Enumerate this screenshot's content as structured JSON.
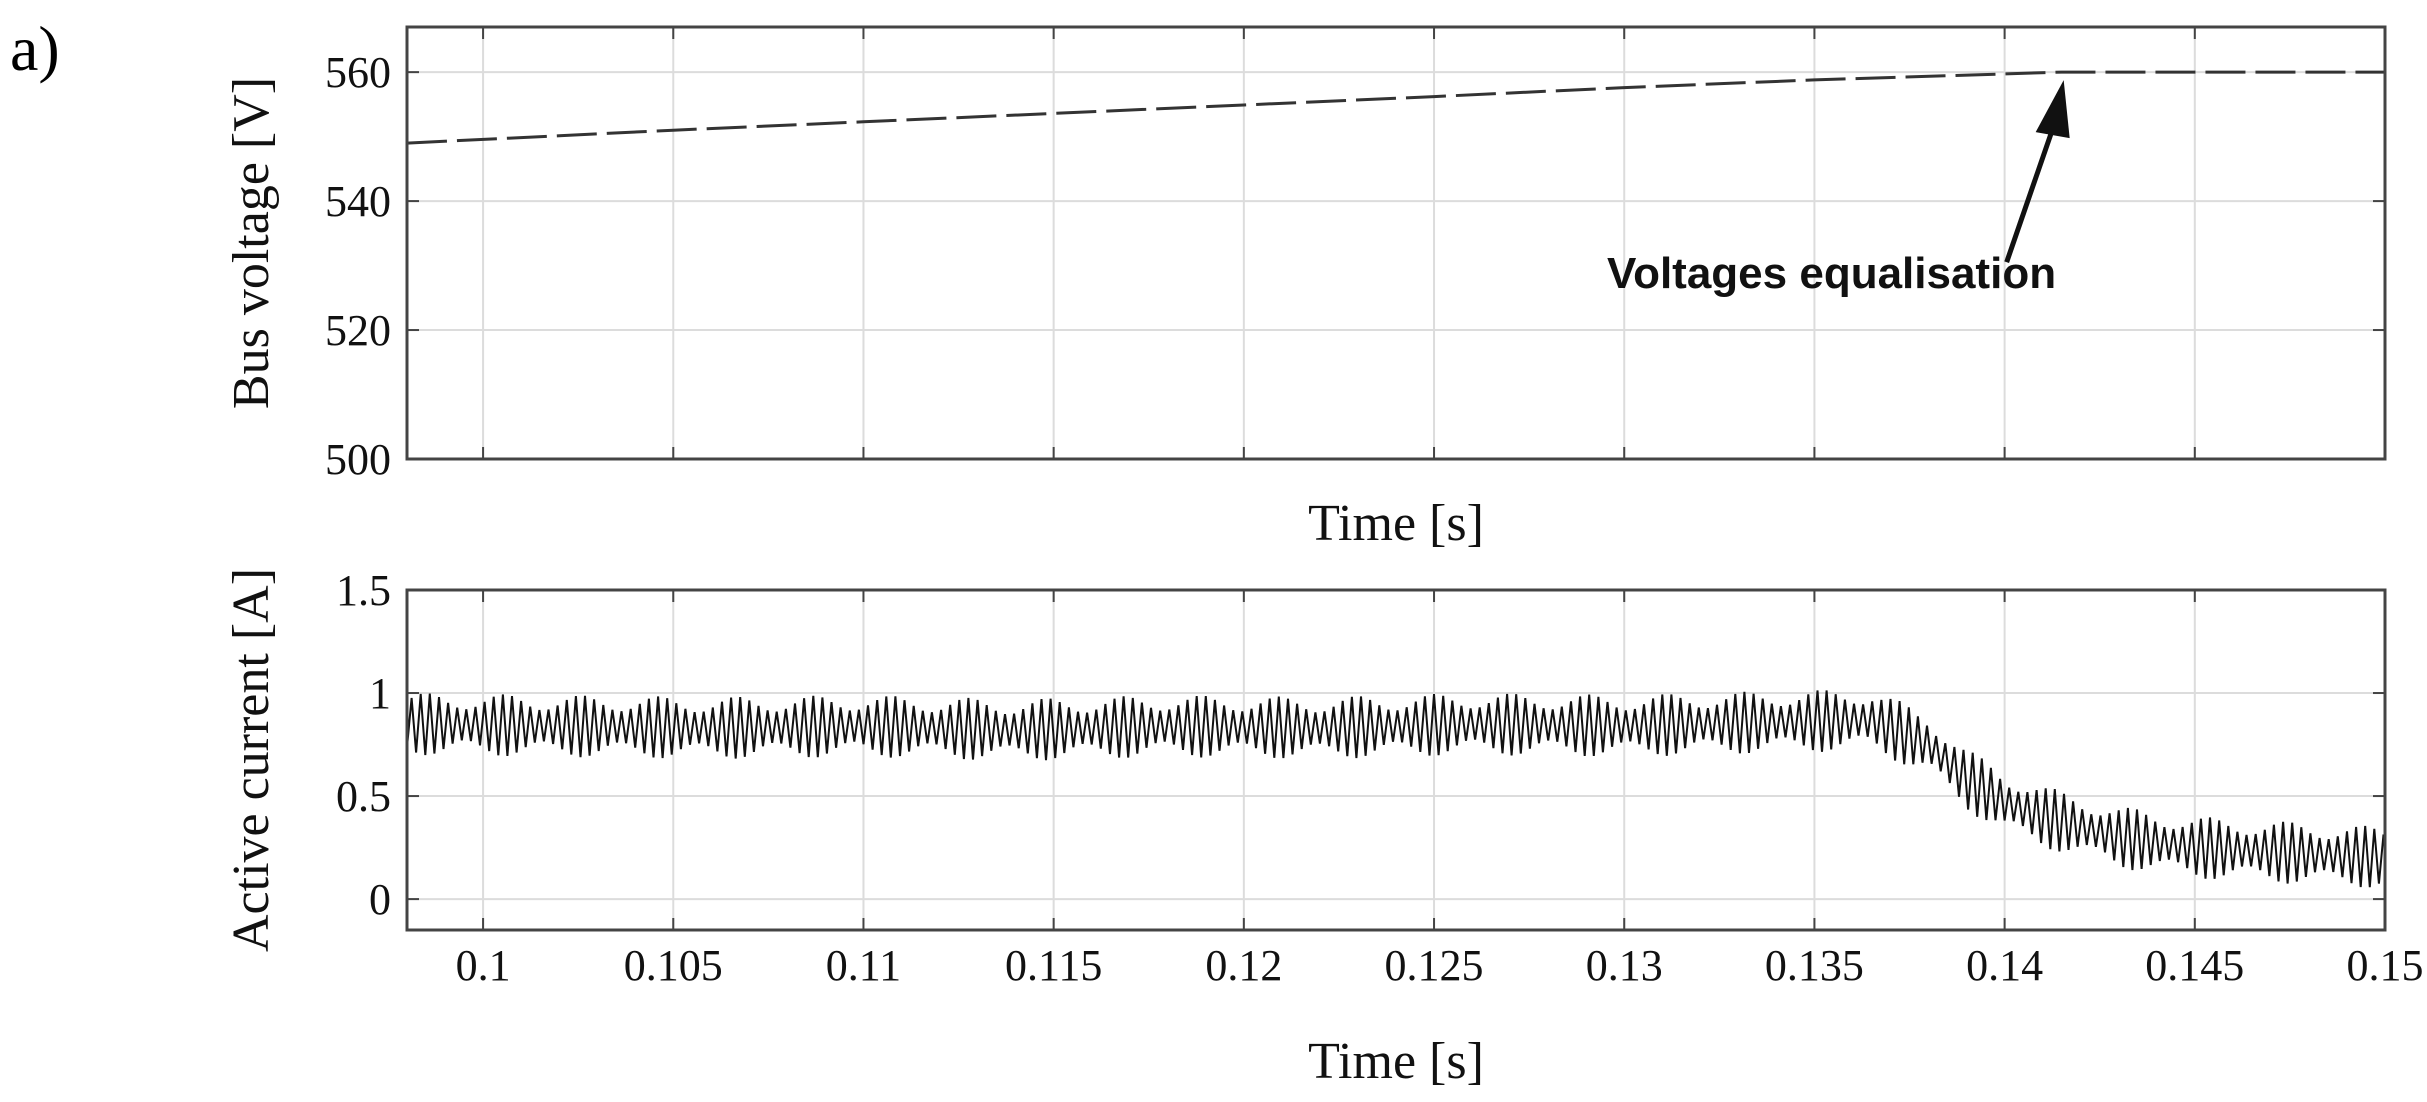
{
  "panel_label": "a)",
  "chart_data": [
    {
      "type": "line",
      "xlabel": "Time [s]",
      "ylabel": "Bus voltage [V]",
      "xlim": [
        0.098,
        0.15
      ],
      "ylim": [
        500,
        567
      ],
      "xticks": [
        0.1,
        0.105,
        0.11,
        0.115,
        0.12,
        0.125,
        0.13,
        0.135,
        0.14,
        0.145,
        0.15
      ],
      "xtick_labels": [],
      "yticks": [
        500,
        520,
        540,
        560
      ],
      "ytick_labels": [
        "500",
        "520",
        "540",
        "560"
      ],
      "grid": true,
      "line_style": "dashed",
      "series": [
        {
          "x": [
            0.098,
            0.105,
            0.11,
            0.115,
            0.12,
            0.125,
            0.13,
            0.135,
            0.1415,
            0.15
          ],
          "values": [
            549,
            551,
            552.3,
            553.6,
            554.9,
            556.2,
            557.6,
            558.8,
            560,
            560
          ]
        }
      ],
      "annotations": [
        {
          "text": "Voltages equalisation",
          "x": 0.1415,
          "y": 560
        }
      ]
    },
    {
      "type": "line",
      "xlabel": "Time [s]",
      "ylabel": "Active current [A]",
      "xlim": [
        0.098,
        0.15
      ],
      "ylim": [
        -0.15,
        1.5
      ],
      "xticks": [
        0.1,
        0.105,
        0.11,
        0.115,
        0.12,
        0.125,
        0.13,
        0.135,
        0.14,
        0.145,
        0.15
      ],
      "xtick_labels": [
        "0.1",
        "0.105",
        "0.11",
        "0.115",
        "0.12",
        "0.125",
        "0.13",
        "0.135",
        "0.14",
        "0.145",
        "0.15"
      ],
      "yticks": [
        0,
        0.5,
        1,
        1.5
      ],
      "ytick_labels": [
        "0",
        "0.5",
        "1",
        "1.5"
      ],
      "grid": true,
      "ripple": 0.3,
      "series": [
        {
          "x": [
            0.098,
            0.102,
            0.106,
            0.11,
            0.114,
            0.118,
            0.122,
            0.126,
            0.13,
            0.134,
            0.1365,
            0.138,
            0.139,
            0.14,
            0.141,
            0.142,
            0.143,
            0.145,
            0.148,
            0.15
          ],
          "values": [
            0.85,
            0.84,
            0.83,
            0.84,
            0.82,
            0.84,
            0.83,
            0.85,
            0.84,
            0.86,
            0.87,
            0.75,
            0.58,
            0.47,
            0.4,
            0.35,
            0.3,
            0.25,
            0.22,
            0.2
          ]
        }
      ]
    }
  ]
}
